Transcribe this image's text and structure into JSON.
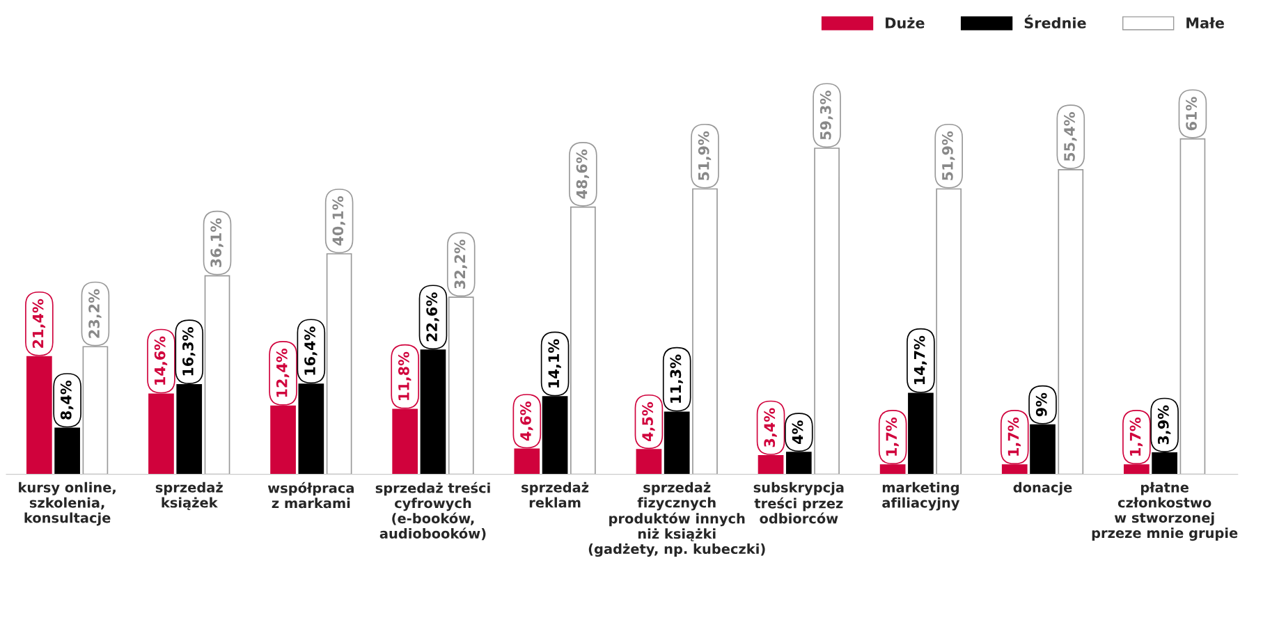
{
  "chart_data": {
    "type": "bar",
    "categories": [
      "kursy online,\nszkolenia,\nkonsultacje",
      "sprzedaż\nksiążek",
      "współpraca\nz markami",
      "sprzedaż treści\ncyfrowych\n(e-booków,\naudiobooków)",
      "sprzedaż\nreklam",
      "sprzedaż\nfizycznych\nproduktów innych\nniż książki\n(gadżety, np. kubeczki)",
      "subskrypcja\ntreści przez\nodbiorców",
      "marketing\nafiliacyjny",
      "donacje",
      "płatne\nczłonkostwo\nw stworzonej\nprzeze mnie grupie"
    ],
    "series": [
      {
        "name": "Duże",
        "color": "#d0023c",
        "values": [
          21.4,
          14.6,
          12.4,
          11.8,
          4.6,
          4.5,
          3.4,
          1.7,
          1.7,
          1.7
        ],
        "value_labels": [
          "21,4%",
          "14,6%",
          "12,4%",
          "11,8%",
          "4,6%",
          "4,5%",
          "3,4%",
          "1,7%",
          "1,7%",
          "1,7%"
        ]
      },
      {
        "name": "Średnie",
        "color": "#000000",
        "values": [
          8.4,
          16.3,
          16.4,
          22.6,
          14.1,
          11.3,
          4,
          14.7,
          9,
          3.9
        ],
        "value_labels": [
          "8,4%",
          "16,3%",
          "16,4%",
          "22,6%",
          "14,1%",
          "11,3%",
          "4%",
          "14,7%",
          "9%",
          "3,9%"
        ]
      },
      {
        "name": "Małe",
        "color": "#ffffff",
        "values": [
          23.2,
          36.1,
          40.1,
          32.2,
          48.6,
          51.9,
          59.3,
          51.9,
          55.4,
          61
        ],
        "value_labels": [
          "23,2%",
          "36,1%",
          "40,1%",
          "32,2%",
          "48,6%",
          "51,9%",
          "59,3%",
          "51,9%",
          "55,4%",
          "61%"
        ]
      }
    ],
    "legend": "top right",
    "grid": false
  }
}
